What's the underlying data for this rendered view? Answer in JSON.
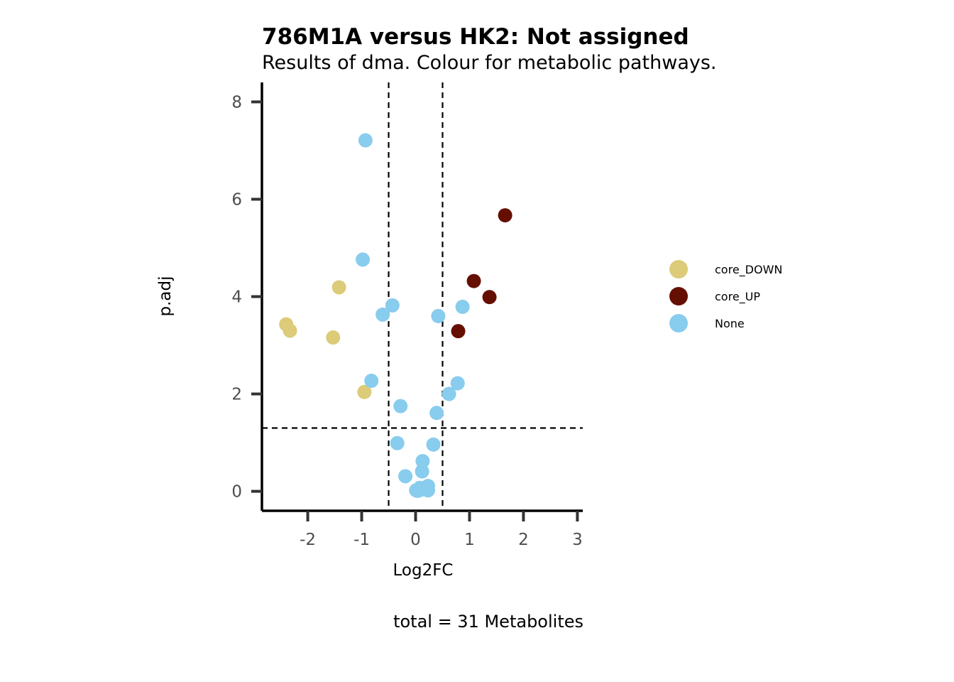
{
  "chart_data": {
    "type": "scatter",
    "title": "786M1A versus HK2: Not assigned",
    "subtitle": "Results of dma. Colour for metabolic pathways.",
    "xlabel": "Log2FC",
    "ylabel": "p.adj",
    "caption": "total = 31 Metabolites",
    "xlim": [
      -2.85,
      3.1
    ],
    "ylim": [
      -0.4,
      8.4
    ],
    "x_ticks": [
      -2,
      -1,
      0,
      1,
      2,
      3
    ],
    "x_tick_labels": [
      "-2",
      "-1",
      "0",
      "1",
      "2",
      "3"
    ],
    "y_ticks": [
      0,
      2,
      4,
      6,
      8
    ],
    "y_tick_labels": [
      "0",
      "2",
      "4",
      "6",
      "8"
    ],
    "vlines": [
      -0.5,
      0.5
    ],
    "hlines": [
      1.3
    ],
    "grid": false,
    "legend_position": "right",
    "colors": {
      "core_DOWN": "#dccb78",
      "core_UP": "#650f00",
      "None": "#88ccee"
    },
    "legend": [
      "core_DOWN",
      "core_UP",
      "None"
    ],
    "series": [
      {
        "name": "core_DOWN",
        "points": [
          {
            "x": -2.4,
            "y": 3.43
          },
          {
            "x": -2.33,
            "y": 3.3
          },
          {
            "x": -1.42,
            "y": 4.19
          },
          {
            "x": -1.53,
            "y": 3.16
          },
          {
            "x": -0.95,
            "y": 2.04
          }
        ]
      },
      {
        "name": "core_UP",
        "points": [
          {
            "x": 1.66,
            "y": 5.67
          },
          {
            "x": 1.08,
            "y": 4.32
          },
          {
            "x": 1.37,
            "y": 3.99
          },
          {
            "x": 0.79,
            "y": 3.29
          }
        ]
      },
      {
        "name": "None",
        "points": [
          {
            "x": -0.93,
            "y": 7.21
          },
          {
            "x": -0.98,
            "y": 4.76
          },
          {
            "x": -0.43,
            "y": 3.82
          },
          {
            "x": -0.61,
            "y": 3.63
          },
          {
            "x": 0.42,
            "y": 3.6
          },
          {
            "x": 0.87,
            "y": 3.79
          },
          {
            "x": -0.82,
            "y": 2.27
          },
          {
            "x": 0.78,
            "y": 2.22
          },
          {
            "x": 0.62,
            "y": 2.0
          },
          {
            "x": -0.28,
            "y": 1.75
          },
          {
            "x": 0.39,
            "y": 1.61
          },
          {
            "x": -0.34,
            "y": 0.99
          },
          {
            "x": 0.33,
            "y": 0.96
          },
          {
            "x": 0.13,
            "y": 0.62
          },
          {
            "x": 0.12,
            "y": 0.41
          },
          {
            "x": -0.19,
            "y": 0.31
          },
          {
            "x": 0.23,
            "y": 0.11
          },
          {
            "x": 0.08,
            "y": 0.07
          },
          {
            "x": 0.01,
            "y": 0.02
          },
          {
            "x": 0.23,
            "y": 0.02
          },
          {
            "x": 0.04,
            "y": 0.01
          },
          {
            "x": 0.09,
            "y": 0.03
          }
        ]
      }
    ]
  }
}
